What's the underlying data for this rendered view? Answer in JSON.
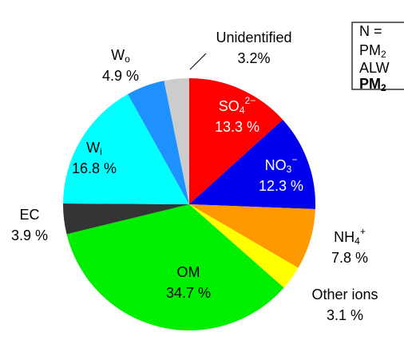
{
  "chart_data": {
    "type": "pie",
    "categories": [
      {
        "text": "SO",
        "sub": "4",
        "sup": "2−"
      },
      {
        "text": "NO",
        "sub": "3",
        "sup": "−"
      },
      {
        "text": "NH",
        "sub": "4",
        "sup": "+"
      },
      {
        "text": "Other ions"
      },
      {
        "text": "OM"
      },
      {
        "text": "EC"
      },
      {
        "text": "W",
        "sub": "i"
      },
      {
        "text": "W",
        "sub": "o"
      },
      {
        "text": "Unidentified"
      }
    ],
    "values": [
      13.3,
      12.3,
      7.8,
      3.1,
      34.7,
      3.9,
      16.8,
      4.9,
      3.2
    ],
    "value_labels": [
      "13.3 %",
      "12.3 %",
      "7.8 %",
      "3.1 %",
      "34.7 %",
      "3.9 %",
      "16.8 %",
      "4.9 %",
      "3.2%"
    ],
    "colors": [
      "#ff0000",
      "#0000ee",
      "#ff9900",
      "#ffff00",
      "#00ee00",
      "#333333",
      "#00ffff",
      "#1e90ff",
      "#cccccc"
    ],
    "annotations": [
      {
        "text": "N ="
      },
      {
        "text": "PM",
        "sub": "2"
      },
      {
        "text": "ALW"
      },
      {
        "text": "PM",
        "sub": "2",
        "bold": true
      }
    ]
  }
}
